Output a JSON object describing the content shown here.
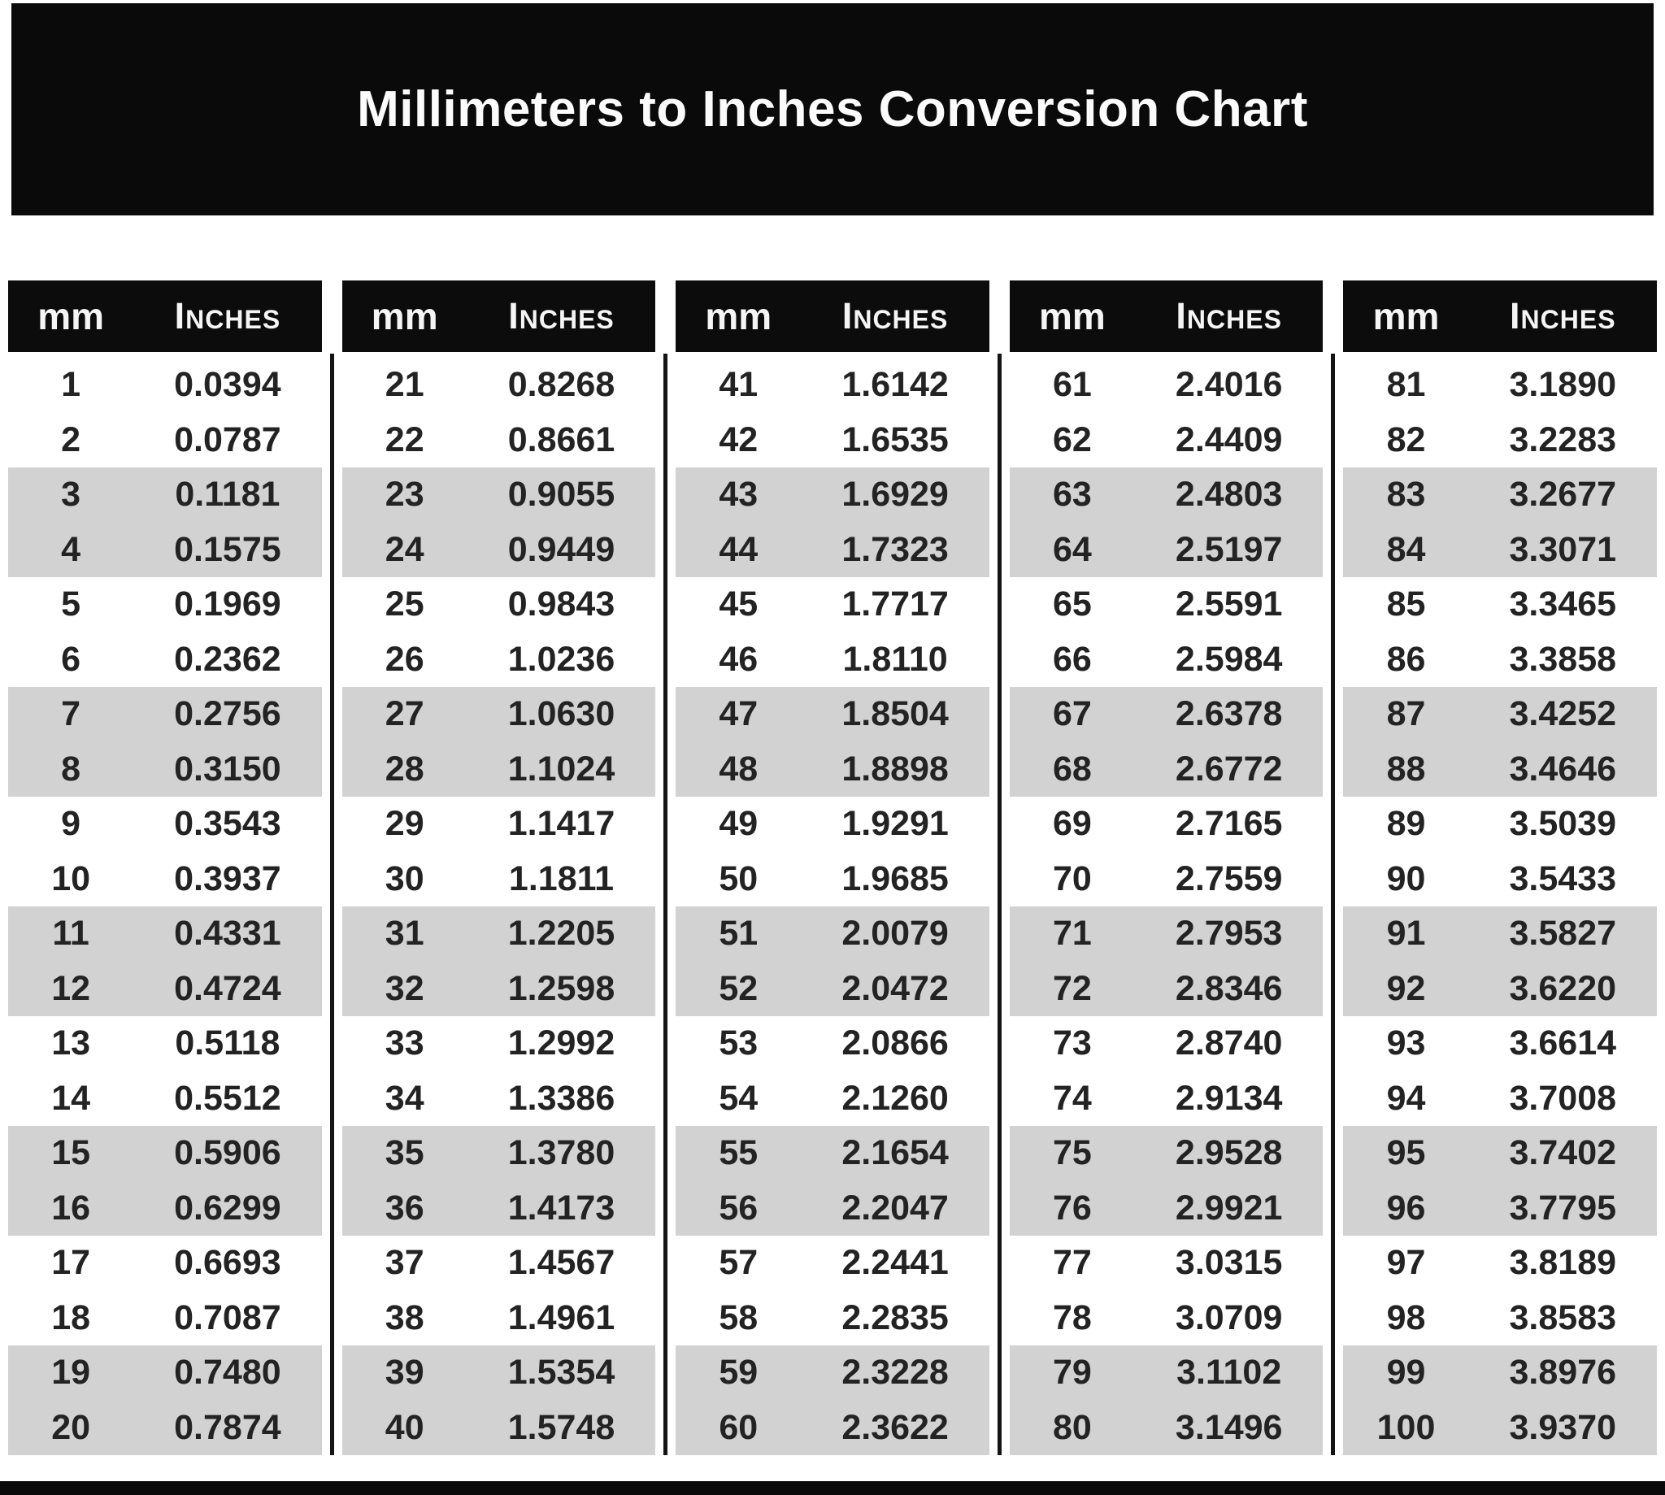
{
  "title": "Millimeters to Inches Conversion Chart",
  "colors": {
    "title_bar_bg": "#0a0a0a",
    "header_bg": "#0c0c0c",
    "header_text": "#f5f5f5",
    "stripe_gray": "#d2d2d2",
    "row_text": "#232323",
    "page_bg": "#ffffff"
  },
  "table": {
    "column_headers": {
      "mm": "mm",
      "inches": "Inches"
    },
    "groups": [
      {
        "rows": [
          [
            "1",
            "0.0394"
          ],
          [
            "2",
            "0.0787"
          ],
          [
            "3",
            "0.1181"
          ],
          [
            "4",
            "0.1575"
          ],
          [
            "5",
            "0.1969"
          ],
          [
            "6",
            "0.2362"
          ],
          [
            "7",
            "0.2756"
          ],
          [
            "8",
            "0.3150"
          ],
          [
            "9",
            "0.3543"
          ],
          [
            "10",
            "0.3937"
          ],
          [
            "11",
            "0.4331"
          ],
          [
            "12",
            "0.4724"
          ],
          [
            "13",
            "0.5118"
          ],
          [
            "14",
            "0.5512"
          ],
          [
            "15",
            "0.5906"
          ],
          [
            "16",
            "0.6299"
          ],
          [
            "17",
            "0.6693"
          ],
          [
            "18",
            "0.7087"
          ],
          [
            "19",
            "0.7480"
          ],
          [
            "20",
            "0.7874"
          ]
        ]
      },
      {
        "rows": [
          [
            "21",
            "0.8268"
          ],
          [
            "22",
            "0.8661"
          ],
          [
            "23",
            "0.9055"
          ],
          [
            "24",
            "0.9449"
          ],
          [
            "25",
            "0.9843"
          ],
          [
            "26",
            "1.0236"
          ],
          [
            "27",
            "1.0630"
          ],
          [
            "28",
            "1.1024"
          ],
          [
            "29",
            "1.1417"
          ],
          [
            "30",
            "1.1811"
          ],
          [
            "31",
            "1.2205"
          ],
          [
            "32",
            "1.2598"
          ],
          [
            "33",
            "1.2992"
          ],
          [
            "34",
            "1.3386"
          ],
          [
            "35",
            "1.3780"
          ],
          [
            "36",
            "1.4173"
          ],
          [
            "37",
            "1.4567"
          ],
          [
            "38",
            "1.4961"
          ],
          [
            "39",
            "1.5354"
          ],
          [
            "40",
            "1.5748"
          ]
        ]
      },
      {
        "rows": [
          [
            "41",
            "1.6142"
          ],
          [
            "42",
            "1.6535"
          ],
          [
            "43",
            "1.6929"
          ],
          [
            "44",
            "1.7323"
          ],
          [
            "45",
            "1.7717"
          ],
          [
            "46",
            "1.8110"
          ],
          [
            "47",
            "1.8504"
          ],
          [
            "48",
            "1.8898"
          ],
          [
            "49",
            "1.9291"
          ],
          [
            "50",
            "1.9685"
          ],
          [
            "51",
            "2.0079"
          ],
          [
            "52",
            "2.0472"
          ],
          [
            "53",
            "2.0866"
          ],
          [
            "54",
            "2.1260"
          ],
          [
            "55",
            "2.1654"
          ],
          [
            "56",
            "2.2047"
          ],
          [
            "57",
            "2.2441"
          ],
          [
            "58",
            "2.2835"
          ],
          [
            "59",
            "2.3228"
          ],
          [
            "60",
            "2.3622"
          ]
        ]
      },
      {
        "rows": [
          [
            "61",
            "2.4016"
          ],
          [
            "62",
            "2.4409"
          ],
          [
            "63",
            "2.4803"
          ],
          [
            "64",
            "2.5197"
          ],
          [
            "65",
            "2.5591"
          ],
          [
            "66",
            "2.5984"
          ],
          [
            "67",
            "2.6378"
          ],
          [
            "68",
            "2.6772"
          ],
          [
            "69",
            "2.7165"
          ],
          [
            "70",
            "2.7559"
          ],
          [
            "71",
            "2.7953"
          ],
          [
            "72",
            "2.8346"
          ],
          [
            "73",
            "2.8740"
          ],
          [
            "74",
            "2.9134"
          ],
          [
            "75",
            "2.9528"
          ],
          [
            "76",
            "2.9921"
          ],
          [
            "77",
            "3.0315"
          ],
          [
            "78",
            "3.0709"
          ],
          [
            "79",
            "3.1102"
          ],
          [
            "80",
            "3.1496"
          ]
        ]
      },
      {
        "rows": [
          [
            "81",
            "3.1890"
          ],
          [
            "82",
            "3.2283"
          ],
          [
            "83",
            "3.2677"
          ],
          [
            "84",
            "3.3071"
          ],
          [
            "85",
            "3.3465"
          ],
          [
            "86",
            "3.3858"
          ],
          [
            "87",
            "3.4252"
          ],
          [
            "88",
            "3.4646"
          ],
          [
            "89",
            "3.5039"
          ],
          [
            "90",
            "3.5433"
          ],
          [
            "91",
            "3.5827"
          ],
          [
            "92",
            "3.6220"
          ],
          [
            "93",
            "3.6614"
          ],
          [
            "94",
            "3.7008"
          ],
          [
            "95",
            "3.7402"
          ],
          [
            "96",
            "3.7795"
          ],
          [
            "97",
            "3.8189"
          ],
          [
            "98",
            "3.8583"
          ],
          [
            "99",
            "3.8976"
          ],
          [
            "100",
            "3.9370"
          ]
        ]
      }
    ]
  }
}
